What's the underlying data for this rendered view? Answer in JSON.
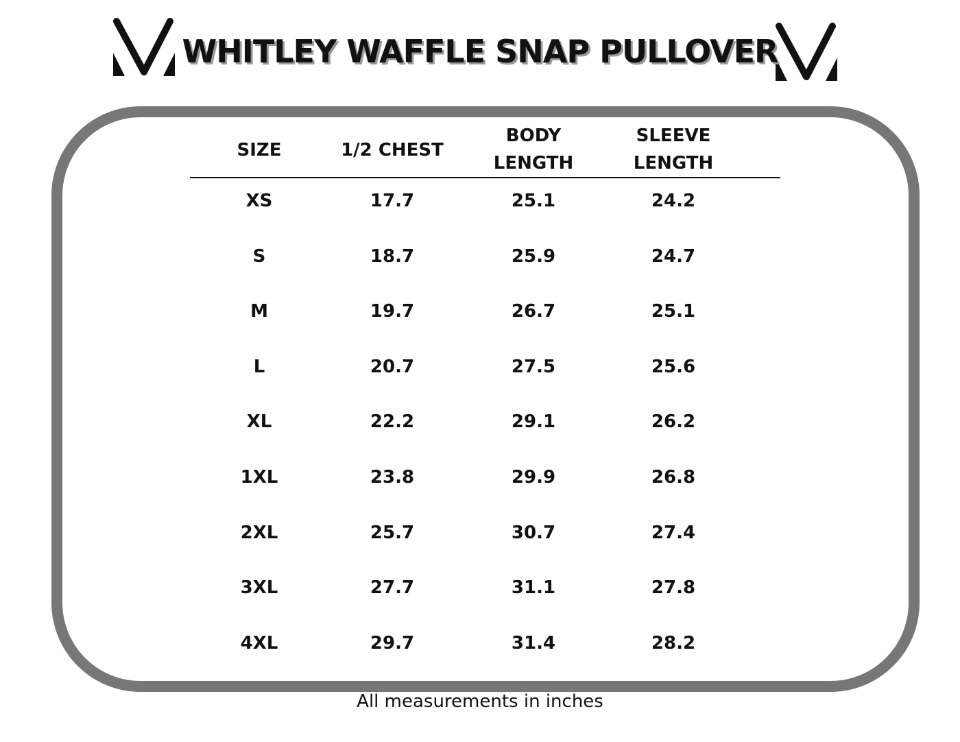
{
  "header": {
    "title": "WHITLEY WAFFLE SNAP PULLOVER"
  },
  "table": {
    "columns": [
      "SIZE",
      "1/2 CHEST",
      "BODY LENGTH",
      "SLEEVE LENGTH"
    ],
    "rows": [
      [
        "XS",
        "17.7",
        "25.1",
        "24.2"
      ],
      [
        "S",
        "18.7",
        "25.9",
        "24.7"
      ],
      [
        "M",
        "19.7",
        "26.7",
        "25.1"
      ],
      [
        "L",
        "20.7",
        "27.5",
        "25.6"
      ],
      [
        "XL",
        "22.2",
        "29.1",
        "26.2"
      ],
      [
        "1XL",
        "23.8",
        "29.9",
        "26.8"
      ],
      [
        "2XL",
        "25.7",
        "30.7",
        "27.4"
      ],
      [
        "3XL",
        "27.7",
        "31.1",
        "27.8"
      ],
      [
        "4XL",
        "29.7",
        "31.4",
        "28.2"
      ]
    ]
  },
  "footer": {
    "note": "All measurements in inches"
  }
}
